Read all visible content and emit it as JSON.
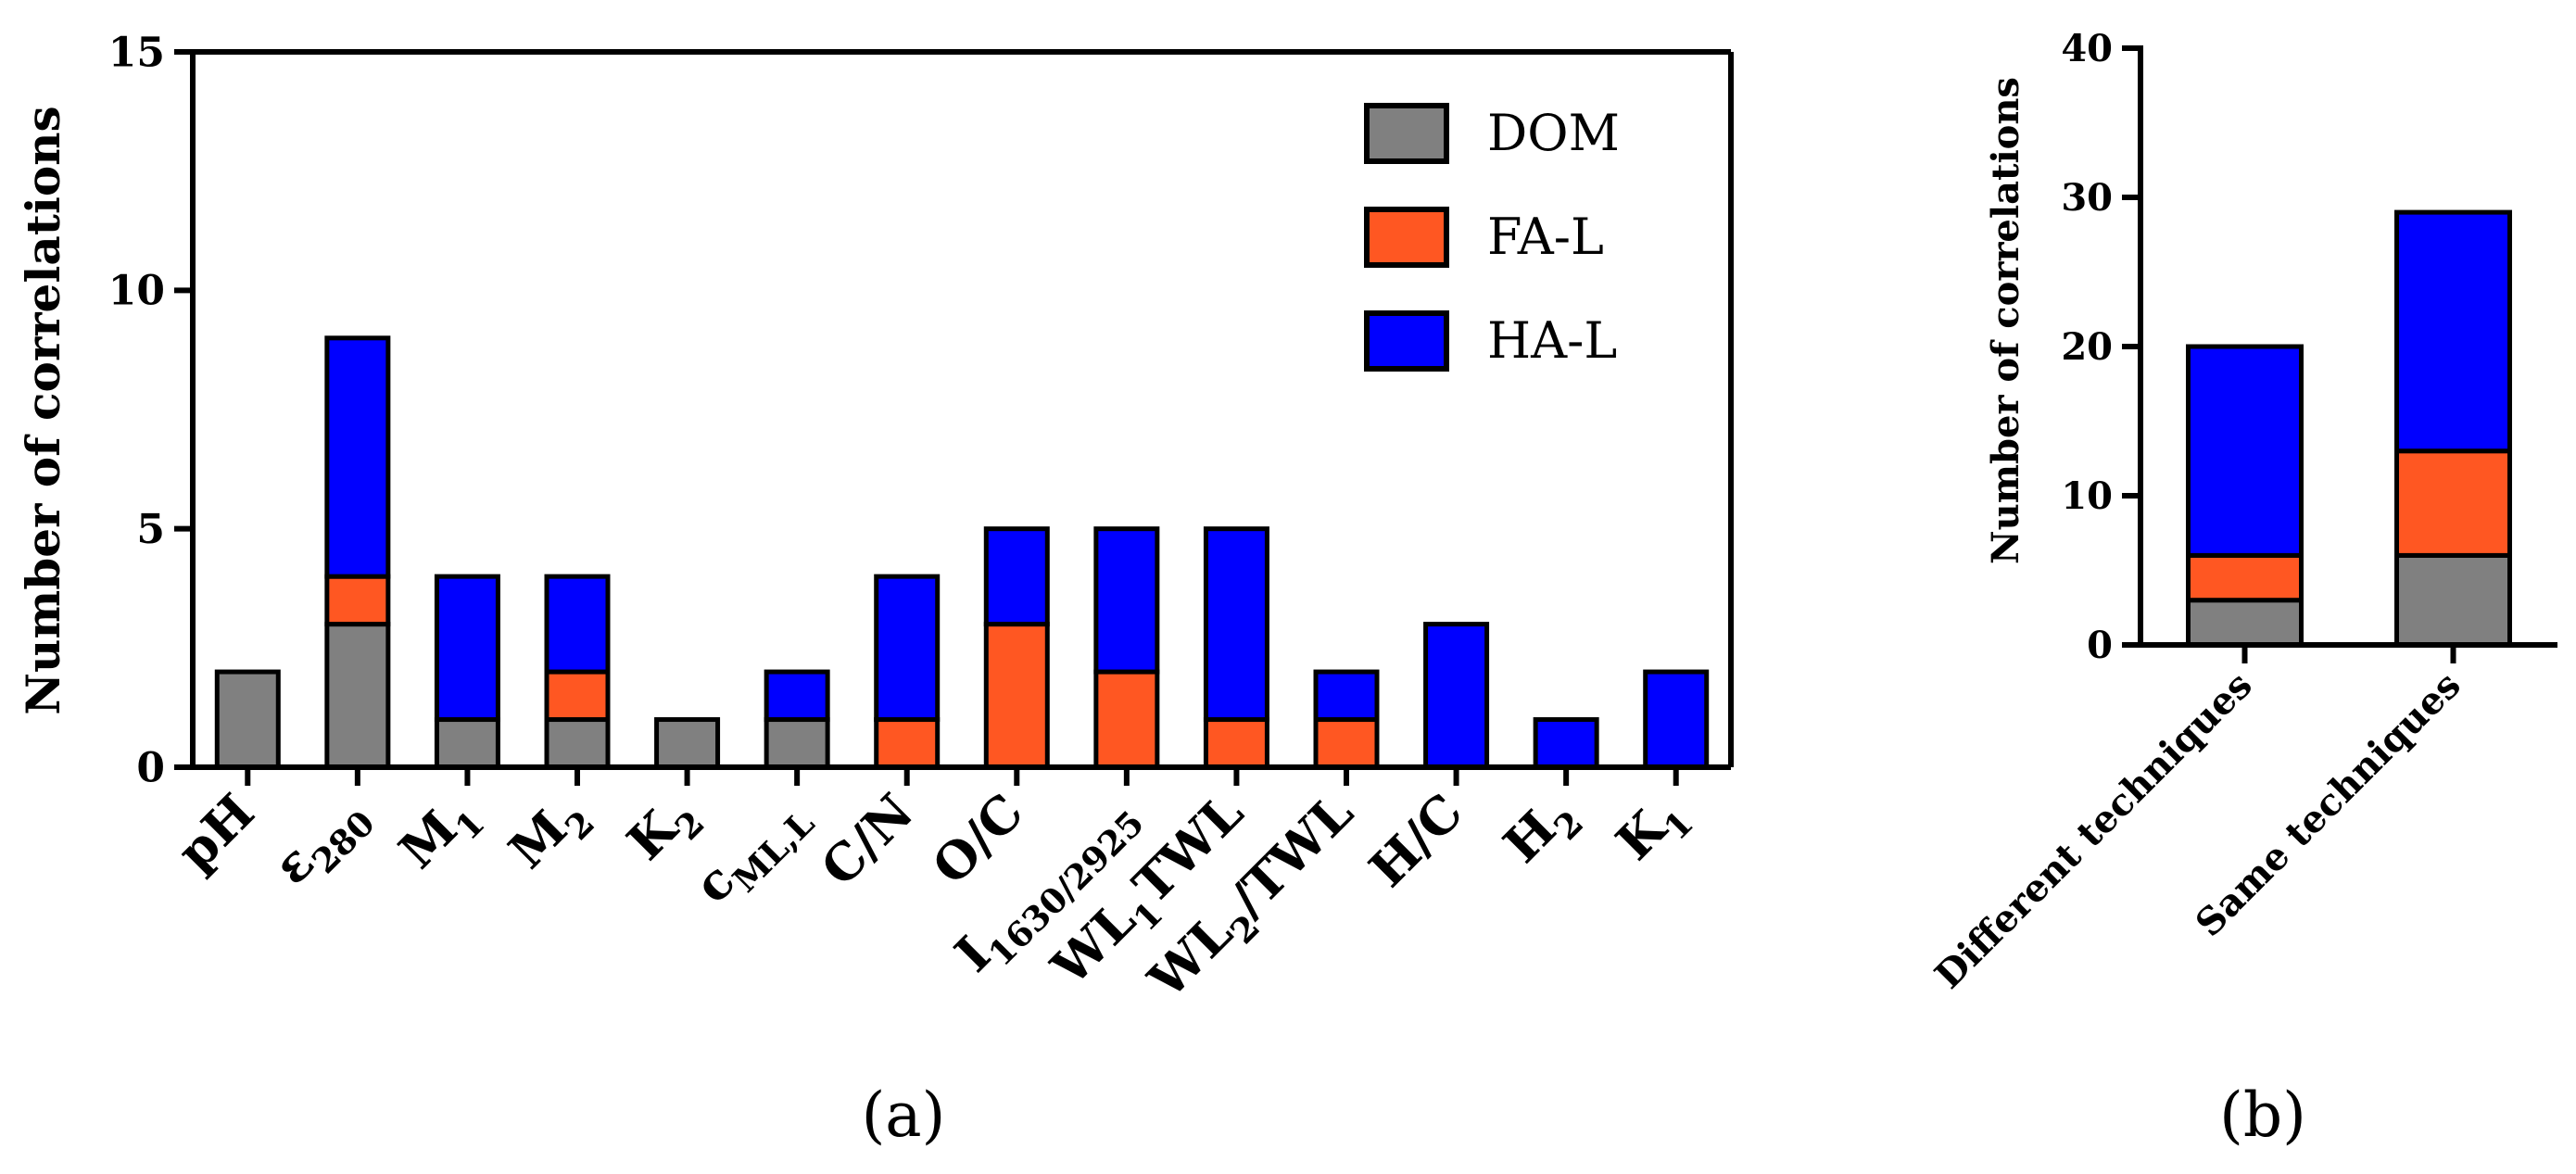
{
  "colors": {
    "DOM": "#808080",
    "FA-L": "#ff5722",
    "HA-L": "#0000ff",
    "axis": "#000000"
  },
  "chart_data": [
    {
      "panel": "(a)",
      "type": "bar",
      "stacked": true,
      "ylabel": "Number of correlations",
      "ylim": [
        0,
        15
      ],
      "yticks": [
        0,
        5,
        10,
        15
      ],
      "categories": [
        {
          "base": "pH",
          "sub": ""
        },
        {
          "base": "ε",
          "sub": "280"
        },
        {
          "base": "M",
          "sub": "1"
        },
        {
          "base": "M",
          "sub": "2"
        },
        {
          "base": "K",
          "sub": "2"
        },
        {
          "base": "c",
          "sub": "ML,L"
        },
        {
          "base": "C/N",
          "sub": ""
        },
        {
          "base": "O/C",
          "sub": ""
        },
        {
          "base": "I",
          "sub": "1630/2925"
        },
        {
          "base": "WL",
          "sub": "1",
          "tail": "TWL"
        },
        {
          "base": "WL",
          "sub": "2",
          "tail": "/TWL"
        },
        {
          "base": "H/C",
          "sub": ""
        },
        {
          "base": "H",
          "sub": "2"
        },
        {
          "base": "K",
          "sub": "1"
        }
      ],
      "series": [
        {
          "name": "DOM",
          "values": [
            2,
            3,
            1,
            1,
            1,
            1,
            0,
            0,
            0,
            0,
            0,
            0,
            0,
            0
          ]
        },
        {
          "name": "FA-L",
          "values": [
            0,
            1,
            0,
            1,
            0,
            0,
            1,
            3,
            2,
            1,
            1,
            0,
            0,
            0
          ]
        },
        {
          "name": "HA-L",
          "values": [
            0,
            5,
            3,
            2,
            0,
            1,
            3,
            2,
            3,
            4,
            1,
            3,
            1,
            2
          ]
        }
      ],
      "legend": "top-right"
    },
    {
      "panel": "(b)",
      "type": "bar",
      "stacked": true,
      "ylabel": "Number of correlations",
      "ylim": [
        0,
        40
      ],
      "yticks": [
        0,
        10,
        20,
        30,
        40
      ],
      "categories": [
        {
          "base": "Different techniques",
          "sub": ""
        },
        {
          "base": "Same techniques",
          "sub": ""
        }
      ],
      "series": [
        {
          "name": "DOM",
          "values": [
            3,
            6
          ]
        },
        {
          "name": "FA-L",
          "values": [
            3,
            7
          ]
        },
        {
          "name": "HA-L",
          "values": [
            14,
            16
          ]
        }
      ]
    }
  ]
}
